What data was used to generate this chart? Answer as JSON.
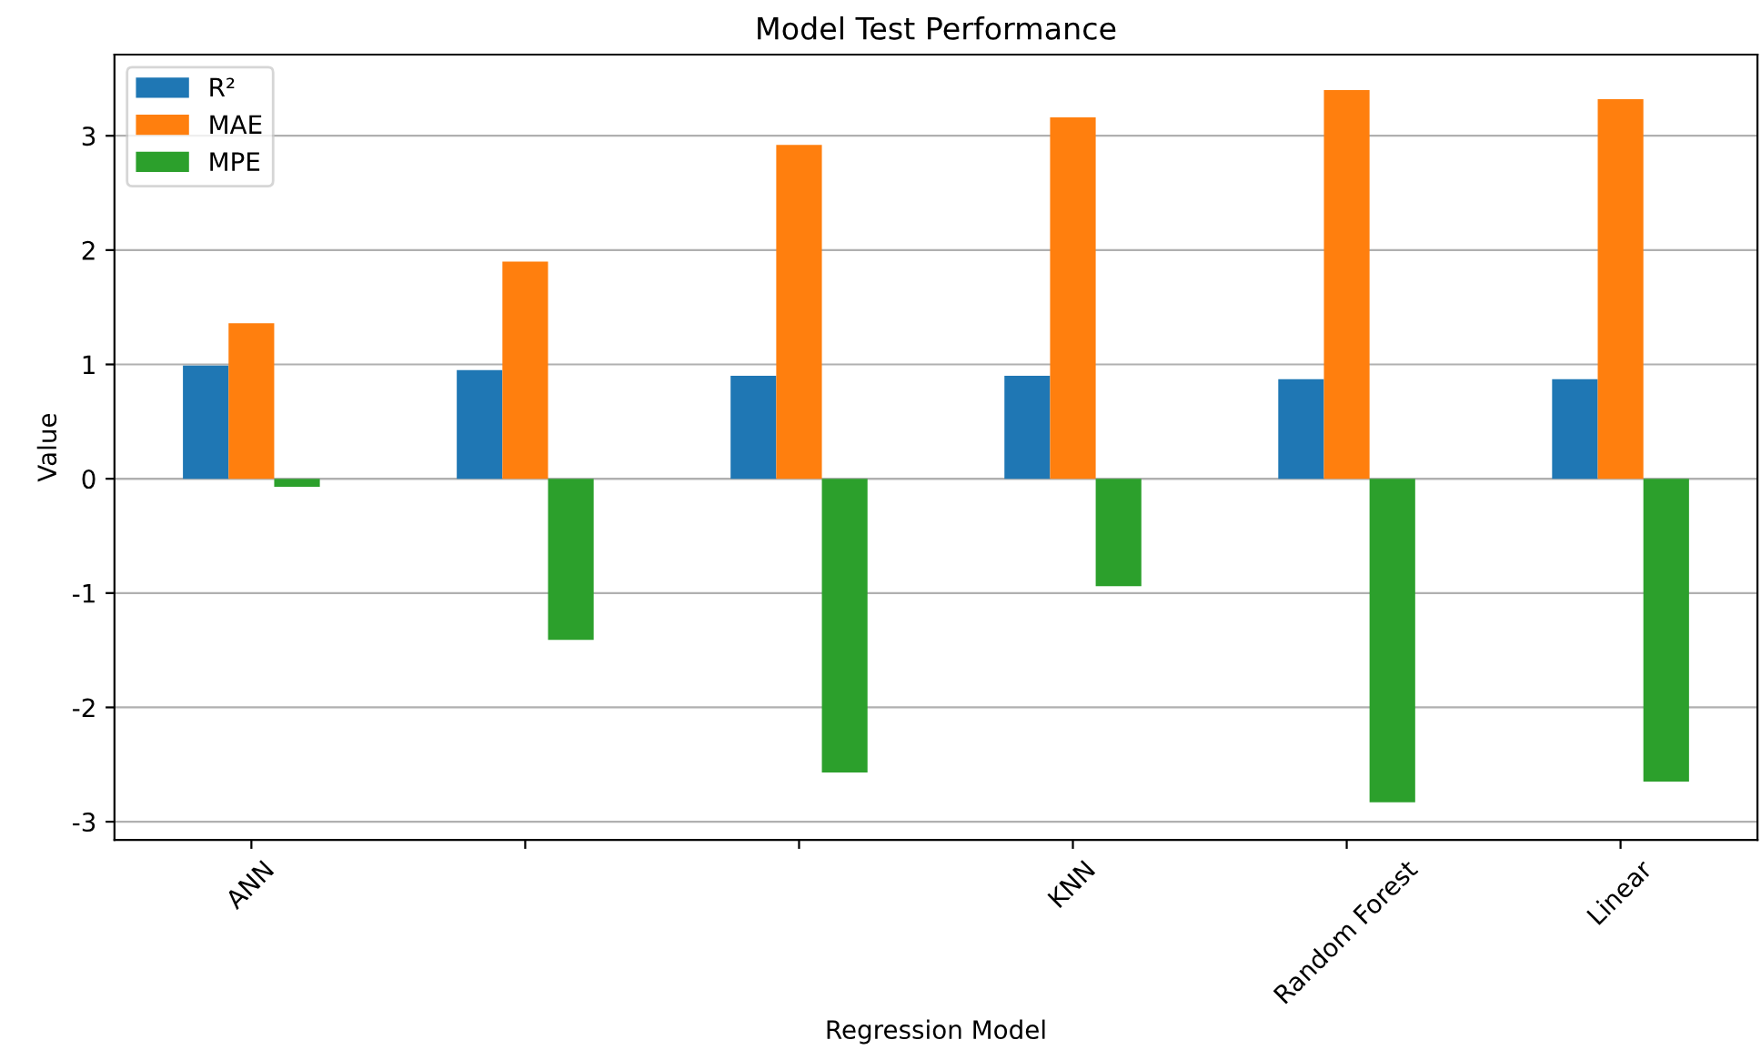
{
  "chart_data": {
    "type": "bar",
    "title": "Model Test Performance",
    "xlabel": "Regression Model",
    "ylabel": "Value",
    "categories": [
      "ANN",
      null,
      null,
      "KNN",
      "Random Forest",
      "Linear"
    ],
    "series": [
      {
        "name": "R²",
        "color": "#1f77b4",
        "values": [
          0.99,
          0.95,
          0.9,
          0.9,
          0.87,
          0.87
        ]
      },
      {
        "name": "MAE",
        "color": "#ff7f0e",
        "values": [
          1.36,
          1.9,
          2.92,
          3.16,
          3.4,
          3.32
        ]
      },
      {
        "name": "MPE",
        "color": "#2ca02c",
        "values": [
          -0.07,
          -1.41,
          -2.57,
          -0.94,
          -2.83,
          -2.65
        ]
      }
    ],
    "ylim": [
      -3.16,
      3.71
    ],
    "yticks": [
      -3,
      -2,
      -1,
      0,
      1,
      2,
      3
    ],
    "grid": "y",
    "legend": "top left"
  }
}
